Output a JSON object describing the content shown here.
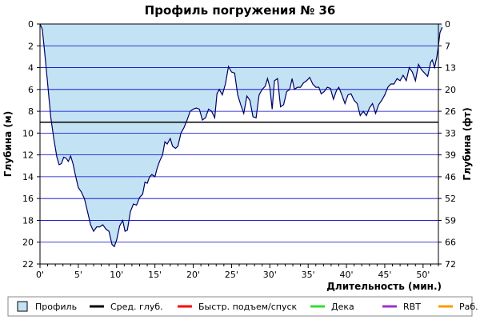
{
  "chart_data": {
    "type": "area",
    "title": "Профиль погружения № 36",
    "xlabel": "Длительность (мин.)",
    "ylabel_left": "Глубина (м)",
    "ylabel_right": "Глубина (фт)",
    "xlim": [
      0,
      52
    ],
    "ylim": [
      0,
      22
    ],
    "y_inverted": true,
    "grid": true,
    "x_ticks": [
      {
        "v": 0,
        "label": "0'"
      },
      {
        "v": 5,
        "label": "5'"
      },
      {
        "v": 10,
        "label": "10'"
      },
      {
        "v": 15,
        "label": "15'"
      },
      {
        "v": 20,
        "label": "20'"
      },
      {
        "v": 25,
        "label": "25'"
      },
      {
        "v": 30,
        "label": "30'"
      },
      {
        "v": 35,
        "label": "35'"
      },
      {
        "v": 40,
        "label": "40'"
      },
      {
        "v": 45,
        "label": "45'"
      },
      {
        "v": 50,
        "label": "50'"
      }
    ],
    "y_ticks_left": [
      {
        "v": 0,
        "label": "0"
      },
      {
        "v": 2,
        "label": "2"
      },
      {
        "v": 4,
        "label": "4"
      },
      {
        "v": 6,
        "label": "6"
      },
      {
        "v": 8,
        "label": "8"
      },
      {
        "v": 10,
        "label": "10"
      },
      {
        "v": 12,
        "label": "12"
      },
      {
        "v": 14,
        "label": "14"
      },
      {
        "v": 16,
        "label": "16"
      },
      {
        "v": 18,
        "label": "18"
      },
      {
        "v": 20,
        "label": "20"
      },
      {
        "v": 22,
        "label": "22"
      }
    ],
    "y_ticks_right": [
      {
        "v": 0,
        "label": "0"
      },
      {
        "v": 2,
        "label": "7"
      },
      {
        "v": 4,
        "label": "13"
      },
      {
        "v": 6,
        "label": "20"
      },
      {
        "v": 8,
        "label": "26"
      },
      {
        "v": 10,
        "label": "33"
      },
      {
        "v": 12,
        "label": "39"
      },
      {
        "v": 14,
        "label": "46"
      },
      {
        "v": 16,
        "label": "52"
      },
      {
        "v": 18,
        "label": "59"
      },
      {
        "v": 20,
        "label": "66"
      },
      {
        "v": 22,
        "label": "72"
      }
    ],
    "average_depth": 9.0,
    "profile": [
      [
        0,
        0
      ],
      [
        0.3,
        0.5
      ],
      [
        0.6,
        2.5
      ],
      [
        1.0,
        5.5
      ],
      [
        1.4,
        8.5
      ],
      [
        1.8,
        10.5
      ],
      [
        2.2,
        12.2
      ],
      [
        2.5,
        12.9
      ],
      [
        2.8,
        12.8
      ],
      [
        3.1,
        12.2
      ],
      [
        3.4,
        12.3
      ],
      [
        3.7,
        12.6
      ],
      [
        4.0,
        12.1
      ],
      [
        4.3,
        12.8
      ],
      [
        4.6,
        13.8
      ],
      [
        5.0,
        15.0
      ],
      [
        5.4,
        15.4
      ],
      [
        5.8,
        16.0
      ],
      [
        6.2,
        17.2
      ],
      [
        6.6,
        18.4
      ],
      [
        7.0,
        19.0
      ],
      [
        7.4,
        18.6
      ],
      [
        7.8,
        18.6
      ],
      [
        8.2,
        18.4
      ],
      [
        8.6,
        18.8
      ],
      [
        9.0,
        19.0
      ],
      [
        9.4,
        20.2
      ],
      [
        9.7,
        20.4
      ],
      [
        10.0,
        19.8
      ],
      [
        10.4,
        18.5
      ],
      [
        10.8,
        18.0
      ],
      [
        11.1,
        19.0
      ],
      [
        11.4,
        18.9
      ],
      [
        11.8,
        17.2
      ],
      [
        12.2,
        16.5
      ],
      [
        12.6,
        16.6
      ],
      [
        13.0,
        15.9
      ],
      [
        13.4,
        15.6
      ],
      [
        13.7,
        14.5
      ],
      [
        14.0,
        14.6
      ],
      [
        14.3,
        14.0
      ],
      [
        14.6,
        13.8
      ],
      [
        15.0,
        14.0
      ],
      [
        15.3,
        13.2
      ],
      [
        15.6,
        12.6
      ],
      [
        16.0,
        12.0
      ],
      [
        16.3,
        10.8
      ],
      [
        16.6,
        11.0
      ],
      [
        17.0,
        10.5
      ],
      [
        17.3,
        11.2
      ],
      [
        17.7,
        11.4
      ],
      [
        18.0,
        11.2
      ],
      [
        18.4,
        10.0
      ],
      [
        18.8,
        9.5
      ],
      [
        19.2,
        8.8
      ],
      [
        19.6,
        8.0
      ],
      [
        20.0,
        7.8
      ],
      [
        20.4,
        7.7
      ],
      [
        20.8,
        7.8
      ],
      [
        21.2,
        8.8
      ],
      [
        21.6,
        8.6
      ],
      [
        22.0,
        7.8
      ],
      [
        22.4,
        8.0
      ],
      [
        22.8,
        8.6
      ],
      [
        23.1,
        6.4
      ],
      [
        23.4,
        6.0
      ],
      [
        23.8,
        6.5
      ],
      [
        24.2,
        5.5
      ],
      [
        24.6,
        3.9
      ],
      [
        25.0,
        4.4
      ],
      [
        25.4,
        4.5
      ],
      [
        25.8,
        6.5
      ],
      [
        26.2,
        7.4
      ],
      [
        26.6,
        8.2
      ],
      [
        27.0,
        6.6
      ],
      [
        27.4,
        7.0
      ],
      [
        27.8,
        8.5
      ],
      [
        28.2,
        8.6
      ],
      [
        28.6,
        6.5
      ],
      [
        29.0,
        6.0
      ],
      [
        29.4,
        5.7
      ],
      [
        29.7,
        5.0
      ],
      [
        30.0,
        5.8
      ],
      [
        30.3,
        7.8
      ],
      [
        30.6,
        5.2
      ],
      [
        31.0,
        5.0
      ],
      [
        31.4,
        7.6
      ],
      [
        31.8,
        7.4
      ],
      [
        32.2,
        6.2
      ],
      [
        32.6,
        6.0
      ],
      [
        32.9,
        5.0
      ],
      [
        33.2,
        6.0
      ],
      [
        33.6,
        5.8
      ],
      [
        34.0,
        5.8
      ],
      [
        34.4,
        5.4
      ],
      [
        34.8,
        5.2
      ],
      [
        35.2,
        4.9
      ],
      [
        35.6,
        5.5
      ],
      [
        36.0,
        5.8
      ],
      [
        36.4,
        5.8
      ],
      [
        36.7,
        6.4
      ],
      [
        37.1,
        6.2
      ],
      [
        37.5,
        5.8
      ],
      [
        37.9,
        5.9
      ],
      [
        38.3,
        6.9
      ],
      [
        38.7,
        6.1
      ],
      [
        39.0,
        5.8
      ],
      [
        39.4,
        6.5
      ],
      [
        39.8,
        7.3
      ],
      [
        40.2,
        6.5
      ],
      [
        40.6,
        6.4
      ],
      [
        41.0,
        7.0
      ],
      [
        41.4,
        7.3
      ],
      [
        41.8,
        8.4
      ],
      [
        42.2,
        8.0
      ],
      [
        42.6,
        8.4
      ],
      [
        43.0,
        7.7
      ],
      [
        43.4,
        7.3
      ],
      [
        43.8,
        8.2
      ],
      [
        44.2,
        7.4
      ],
      [
        44.6,
        7.0
      ],
      [
        45.0,
        6.5
      ],
      [
        45.4,
        5.8
      ],
      [
        45.8,
        5.5
      ],
      [
        46.2,
        5.5
      ],
      [
        46.6,
        5.0
      ],
      [
        47.0,
        5.2
      ],
      [
        47.4,
        4.7
      ],
      [
        47.8,
        5.2
      ],
      [
        48.2,
        4.0
      ],
      [
        48.6,
        4.4
      ],
      [
        49.0,
        5.2
      ],
      [
        49.4,
        3.7
      ],
      [
        49.8,
        4.2
      ],
      [
        50.2,
        4.5
      ],
      [
        50.6,
        4.8
      ],
      [
        51.0,
        3.5
      ],
      [
        51.2,
        3.3
      ],
      [
        51.5,
        4.0
      ],
      [
        51.8,
        3.0
      ],
      [
        52.0,
        2.0
      ],
      [
        52.2,
        0.8
      ],
      [
        52.5,
        0.3
      ]
    ],
    "legend": [
      {
        "label": "Профиль",
        "color": "#c3e2f3",
        "kind": "box"
      },
      {
        "label": "Сред. глуб.",
        "color": "#000000",
        "kind": "line"
      },
      {
        "label": "Быстр. подъем/спуск",
        "color": "#ff0000",
        "kind": "line"
      },
      {
        "label": "Дека",
        "color": "#33dd33",
        "kind": "line"
      },
      {
        "label": "RBT",
        "color": "#9933cc",
        "kind": "line"
      },
      {
        "label": "Раб.",
        "color": "#ff9900",
        "kind": "line"
      }
    ],
    "colors": {
      "fill": "#c3e2f3",
      "profile_line": "#000066",
      "grid": "#0000cc",
      "avg": "#000000",
      "background": "#ffffff"
    }
  }
}
